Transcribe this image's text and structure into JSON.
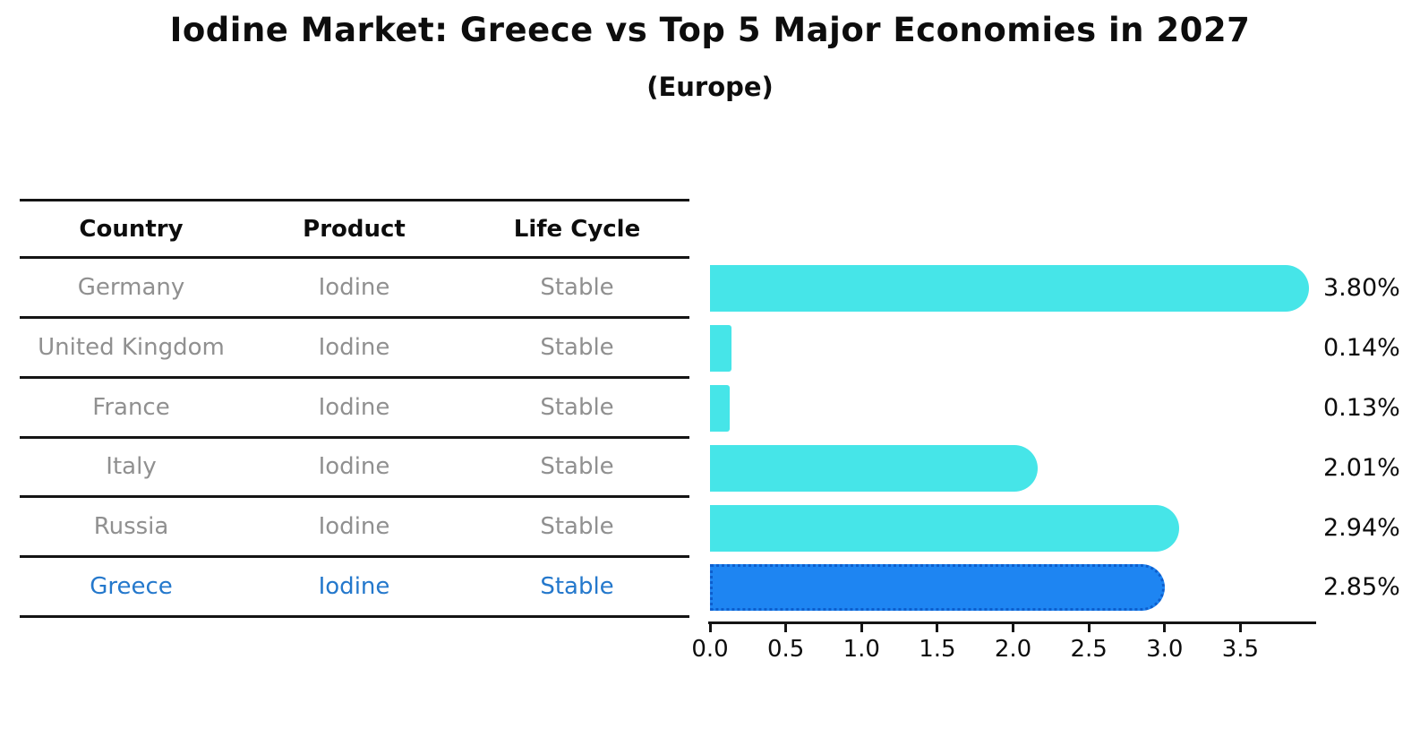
{
  "header": {
    "title": "Iodine Market: Greece vs Top 5 Major Economies in 2027",
    "subtitle": "(Europe)"
  },
  "table": {
    "columns": [
      "Country",
      "Product",
      "Life Cycle"
    ],
    "rows": [
      {
        "country": "Germany",
        "product": "Iodine",
        "life_cycle": "Stable",
        "highlight": false
      },
      {
        "country": "United Kingdom",
        "product": "Iodine",
        "life_cycle": "Stable",
        "highlight": false
      },
      {
        "country": "France",
        "product": "Iodine",
        "life_cycle": "Stable",
        "highlight": false
      },
      {
        "country": "Italy",
        "product": "Iodine",
        "life_cycle": "Stable",
        "highlight": false
      },
      {
        "country": "Russia",
        "product": "Iodine",
        "life_cycle": "Stable",
        "highlight": false
      },
      {
        "country": "Greece",
        "product": "Iodine",
        "life_cycle": "Stable",
        "highlight": true
      }
    ]
  },
  "chart_data": {
    "type": "bar",
    "orientation": "horizontal",
    "title": "Iodine Market: Greece vs Top 5 Major Economies in 2027",
    "subtitle": "(Europe)",
    "categories": [
      "Germany",
      "United Kingdom",
      "France",
      "Italy",
      "Russia",
      "Greece"
    ],
    "values": [
      3.8,
      0.14,
      0.13,
      2.01,
      2.94,
      2.85
    ],
    "value_labels": [
      "3.80%",
      "0.14%",
      "0.13%",
      "2.01%",
      "2.94%",
      "2.85%"
    ],
    "highlight_category": "Greece",
    "xlabel": "",
    "ylabel": "",
    "xlim": [
      0.0,
      4.0
    ],
    "x_ticks": [
      0.0,
      0.5,
      1.0,
      1.5,
      2.0,
      2.5,
      3.0,
      3.5
    ],
    "x_tick_labels": [
      "0.0",
      "0.5",
      "1.0",
      "1.5",
      "2.0",
      "2.5",
      "3.0",
      "3.5"
    ],
    "grid": false,
    "legend": false,
    "colors": {
      "bar": "#46e5e8",
      "highlight_bar": "#1e85f2",
      "highlight_bar_border": "#0d5ecd",
      "value_label_text": "#0d0d0d",
      "table_text": "#909090",
      "highlight_text": "#2478cc",
      "axis": "#141414"
    }
  }
}
